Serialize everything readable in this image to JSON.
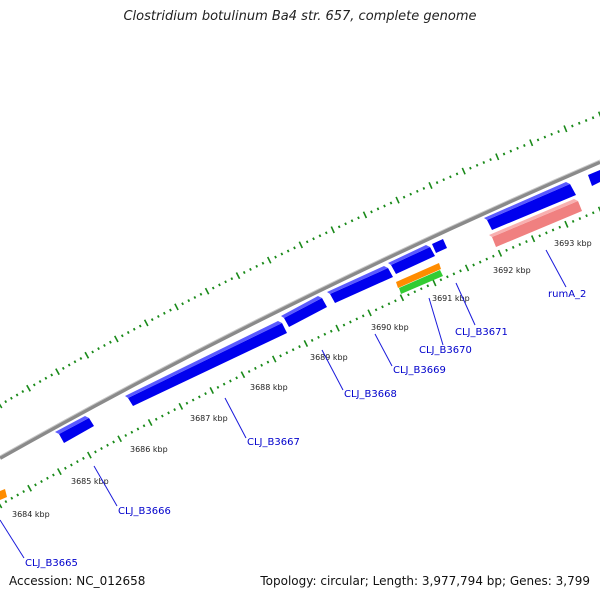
{
  "title": "Clostridium botulinum Ba4 str. 657, complete genome",
  "footer": {
    "accession": "Accession: NC_012658",
    "stats": "Topology: circular; Length: 3,977,794 bp; Genes: 3,799"
  },
  "colors": {
    "backbone": "#8a8a8a",
    "tick": "#1a8a1a",
    "cds": "#0000ee",
    "rrna": "#f08080",
    "orange_feature": "#ff8c00",
    "green_feature": "#33cc33",
    "label": "#0000cc"
  },
  "kbp_labels": [
    "3684 kbp",
    "3685 kbp",
    "3686 kbp",
    "3687 kbp",
    "3688 kbp",
    "3689 kbp",
    "3690 kbp",
    "3691 kbp",
    "3692 kbp",
    "3693 kbp"
  ],
  "gene_labels": [
    "CLJ_B3665",
    "CLJ_B3666",
    "CLJ_B3667",
    "CLJ_B3668",
    "CLJ_B3669",
    "CLJ_B3670",
    "CLJ_B3671",
    "rumA_2"
  ]
}
